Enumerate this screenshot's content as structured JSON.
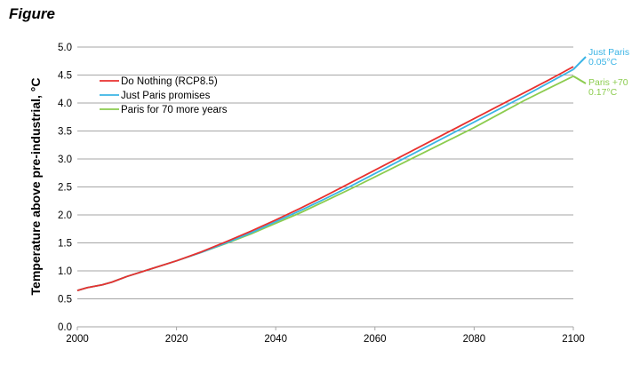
{
  "figure_label": "Figure",
  "colors": {
    "do_nothing": "#e8312f",
    "just_paris": "#3bb4e5",
    "paris_70": "#8ccc4f",
    "grid": "#a6a6a6"
  },
  "chart_data": {
    "type": "line",
    "title": "",
    "xlabel": "",
    "ylabel": "Temperature above pre-industrial, °C",
    "xlim": [
      2000,
      2100
    ],
    "ylim": [
      0,
      5.0
    ],
    "x_ticks": [
      "2000",
      "2020",
      "2040",
      "2060",
      "2080",
      "2100"
    ],
    "y_ticks": [
      "0.0",
      "0.5",
      "1.0",
      "1.5",
      "2.0",
      "2.5",
      "3.0",
      "3.5",
      "4.0",
      "4.5",
      "5.0"
    ],
    "grid": "horizontal",
    "legend_position": "top-left",
    "series": [
      {
        "name": "Do Nothing (RCP8.5)",
        "color_key": "do_nothing",
        "x": [
          2000,
          2002,
          2005,
          2007,
          2010,
          2015,
          2020,
          2025,
          2030,
          2035,
          2040,
          2045,
          2050,
          2055,
          2060,
          2065,
          2070,
          2075,
          2080,
          2085,
          2090,
          2095,
          2100
        ],
        "y": [
          0.65,
          0.7,
          0.75,
          0.8,
          0.9,
          1.04,
          1.18,
          1.34,
          1.52,
          1.71,
          1.91,
          2.12,
          2.34,
          2.57,
          2.8,
          3.03,
          3.26,
          3.49,
          3.72,
          3.95,
          4.18,
          4.41,
          4.65
        ]
      },
      {
        "name": "Just Paris promises",
        "color_key": "just_paris",
        "x": [
          2000,
          2002,
          2005,
          2007,
          2010,
          2015,
          2020,
          2025,
          2030,
          2035,
          2040,
          2045,
          2050,
          2055,
          2060,
          2065,
          2070,
          2075,
          2080,
          2085,
          2090,
          2095,
          2100
        ],
        "y": [
          0.65,
          0.7,
          0.75,
          0.8,
          0.9,
          1.04,
          1.18,
          1.33,
          1.5,
          1.68,
          1.88,
          2.08,
          2.29,
          2.51,
          2.74,
          2.97,
          3.2,
          3.43,
          3.66,
          3.89,
          4.12,
          4.36,
          4.6
        ]
      },
      {
        "name": "Paris for 70 more years",
        "color_key": "paris_70",
        "x": [
          2000,
          2002,
          2005,
          2007,
          2010,
          2015,
          2020,
          2025,
          2030,
          2035,
          2040,
          2045,
          2050,
          2055,
          2060,
          2065,
          2070,
          2075,
          2080,
          2085,
          2090,
          2095,
          2100
        ],
        "y": [
          0.65,
          0.7,
          0.75,
          0.8,
          0.9,
          1.04,
          1.18,
          1.33,
          1.49,
          1.66,
          1.85,
          2.04,
          2.25,
          2.46,
          2.68,
          2.9,
          3.12,
          3.34,
          3.56,
          3.8,
          4.04,
          4.26,
          4.48
        ]
      }
    ],
    "annotations": [
      {
        "lines": [
          "Just Paris",
          "0.05°C"
        ],
        "color_key": "just_paris",
        "target_series": 1,
        "target_x": 2100
      },
      {
        "lines": [
          "Paris +70",
          "0.17°C"
        ],
        "color_key": "paris_70",
        "target_series": 2,
        "target_x": 2100
      }
    ]
  }
}
